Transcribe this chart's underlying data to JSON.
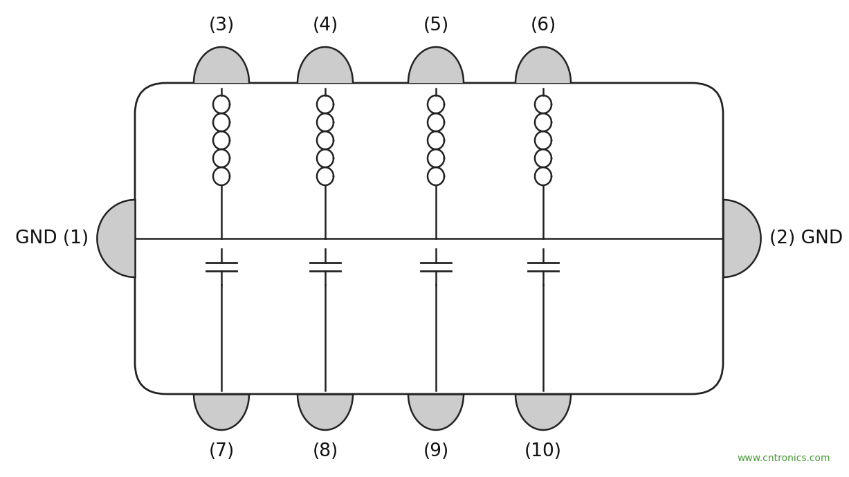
{
  "background_color": "#ffffff",
  "box_edge_color": "#222222",
  "pad_color": "#cccccc",
  "pad_edge_color": "#222222",
  "inductor_color": "#222222",
  "capacitor_color": "#222222",
  "wire_color": "#222222",
  "dashed_rect_color": "#666666",
  "dashed_rect_fill": "#d8d8d8",
  "label_color": "#111111",
  "watermark_color": "#4a9a3a",
  "watermark": "www.cntronics.com",
  "labels_top": [
    "(3)",
    "(4)",
    "(5)",
    "(6)"
  ],
  "labels_bottom": [
    "(7)",
    "(8)",
    "(9)",
    "(10)"
  ],
  "label_left": "GND (1)",
  "label_right": "(2) GND",
  "figsize": [
    12.0,
    6.7
  ],
  "dpi": 100
}
